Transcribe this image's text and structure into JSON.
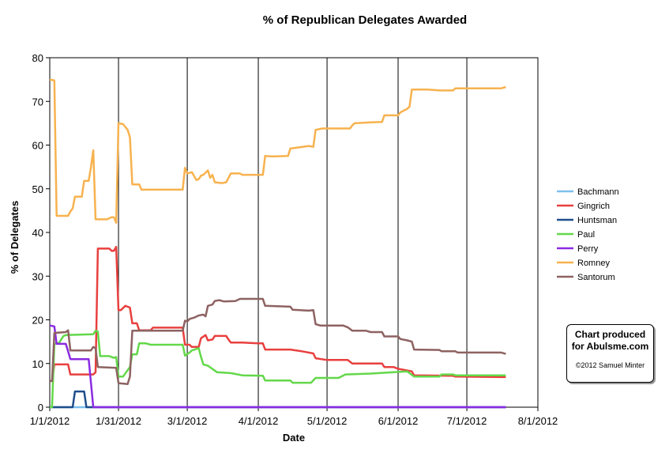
{
  "chart_data": {
    "type": "line",
    "title": "% of Republican Delegates Awarded",
    "xlabel": "Date",
    "ylabel": "% of Delegates",
    "ylim": [
      0,
      80
    ],
    "xlim": [
      "2012-01-01",
      "2012-08-01"
    ],
    "yticks": [
      "0",
      "10",
      "20",
      "30",
      "40",
      "50",
      "60",
      "70",
      "80"
    ],
    "xticks": [
      "1/1/2012",
      "1/31/2012",
      "3/1/2012",
      "4/1/2012",
      "5/1/2012",
      "6/1/2012",
      "7/1/2012",
      "8/1/2012"
    ],
    "grid": "vertical lines at each date tick",
    "legend_position": "right",
    "series": [
      {
        "name": "Bachmann",
        "color": "#7ec0ee",
        "points": [
          [
            "2012-01-01",
            0
          ],
          [
            "2012-07-18",
            0
          ]
        ]
      },
      {
        "name": "Gingrich",
        "color": "#e8403f",
        "points": [
          [
            "2012-01-01",
            6
          ],
          [
            "2012-01-02",
            6
          ],
          [
            "2012-01-03",
            9.8
          ],
          [
            "2012-01-09",
            9.8
          ],
          [
            "2012-01-10",
            7.5
          ],
          [
            "2012-01-20",
            7.5
          ],
          [
            "2012-01-21",
            8
          ],
          [
            "2012-01-22",
            36.3
          ],
          [
            "2012-01-27",
            36.3
          ],
          [
            "2012-01-28",
            35.8
          ],
          [
            "2012-01-29",
            35.8
          ],
          [
            "2012-01-30",
            36.7
          ],
          [
            "2012-01-31",
            22.2
          ],
          [
            "2012-02-01",
            22.2
          ],
          [
            "2012-02-03",
            23.2
          ],
          [
            "2012-02-05",
            22.8
          ],
          [
            "2012-02-06",
            19.2
          ],
          [
            "2012-02-08",
            19.2
          ],
          [
            "2012-02-09",
            17.6
          ],
          [
            "2012-02-14",
            17.6
          ],
          [
            "2012-02-15",
            18.2
          ],
          [
            "2012-02-21",
            18.2
          ],
          [
            "2012-02-28",
            18.2
          ],
          [
            "2012-02-29",
            14.3
          ],
          [
            "2012-03-02",
            14.3
          ],
          [
            "2012-03-03",
            13.8
          ],
          [
            "2012-03-06",
            13.8
          ],
          [
            "2012-03-07",
            15.8
          ],
          [
            "2012-03-09",
            16.5
          ],
          [
            "2012-03-10",
            15.3
          ],
          [
            "2012-03-12",
            15.5
          ],
          [
            "2012-03-13",
            16.3
          ],
          [
            "2012-03-18",
            16.3
          ],
          [
            "2012-03-19",
            15.5
          ],
          [
            "2012-03-20",
            14.8
          ],
          [
            "2012-03-25",
            14.8
          ],
          [
            "2012-04-01",
            14.6
          ],
          [
            "2012-04-03",
            14.6
          ],
          [
            "2012-04-04",
            13.2
          ],
          [
            "2012-04-15",
            13.2
          ],
          [
            "2012-04-20",
            12.8
          ],
          [
            "2012-04-25",
            12.3
          ],
          [
            "2012-04-26",
            11.2
          ],
          [
            "2012-05-01",
            10.8
          ],
          [
            "2012-05-10",
            10.8
          ],
          [
            "2012-05-12",
            10
          ],
          [
            "2012-05-25",
            10
          ],
          [
            "2012-05-26",
            9.2
          ],
          [
            "2012-05-30",
            9.2
          ],
          [
            "2012-06-01",
            8.8
          ],
          [
            "2012-06-07",
            8.2
          ],
          [
            "2012-06-08",
            7.3
          ],
          [
            "2012-06-25",
            7.2
          ],
          [
            "2012-06-26",
            7
          ],
          [
            "2012-07-18",
            6.9
          ]
        ]
      },
      {
        "name": "Huntsman",
        "color": "#1f4e8c",
        "points": [
          [
            "2012-01-01",
            0
          ],
          [
            "2012-01-11",
            0
          ],
          [
            "2012-01-12",
            3.6
          ],
          [
            "2012-01-16",
            3.6
          ],
          [
            "2012-01-17",
            0
          ],
          [
            "2012-07-18",
            0
          ]
        ]
      },
      {
        "name": "Paul",
        "color": "#63d84a",
        "points": [
          [
            "2012-01-01",
            0
          ],
          [
            "2012-01-02",
            0
          ],
          [
            "2012-01-03",
            14.5
          ],
          [
            "2012-01-05",
            14.7
          ],
          [
            "2012-01-07",
            16.3
          ],
          [
            "2012-01-08",
            16.5
          ],
          [
            "2012-01-20",
            16.7
          ],
          [
            "2012-01-21",
            17.5
          ],
          [
            "2012-01-22",
            17.3
          ],
          [
            "2012-01-23",
            11.7
          ],
          [
            "2012-01-27",
            11.7
          ],
          [
            "2012-01-29",
            11.3
          ],
          [
            "2012-01-30",
            11.5
          ],
          [
            "2012-01-31",
            7
          ],
          [
            "2012-02-02",
            7
          ],
          [
            "2012-02-05",
            9.2
          ],
          [
            "2012-02-06",
            12.1
          ],
          [
            "2012-02-08",
            12.1
          ],
          [
            "2012-02-09",
            14.6
          ],
          [
            "2012-02-12",
            14.6
          ],
          [
            "2012-02-14",
            14.3
          ],
          [
            "2012-02-28",
            14.3
          ],
          [
            "2012-02-29",
            11.8
          ],
          [
            "2012-03-02",
            12.5
          ],
          [
            "2012-03-03",
            13
          ],
          [
            "2012-03-06",
            13.5
          ],
          [
            "2012-03-07",
            11.5
          ],
          [
            "2012-03-08",
            9.8
          ],
          [
            "2012-03-10",
            9.5
          ],
          [
            "2012-03-14",
            8
          ],
          [
            "2012-03-20",
            7.8
          ],
          [
            "2012-03-25",
            7.3
          ],
          [
            "2012-04-03",
            7.2
          ],
          [
            "2012-04-04",
            6.1
          ],
          [
            "2012-04-15",
            6.1
          ],
          [
            "2012-04-16",
            5.6
          ],
          [
            "2012-04-24",
            5.6
          ],
          [
            "2012-04-26",
            6.7
          ],
          [
            "2012-05-06",
            6.7
          ],
          [
            "2012-05-09",
            7.5
          ],
          [
            "2012-05-20",
            7.7
          ],
          [
            "2012-05-30",
            8
          ],
          [
            "2012-06-05",
            8.2
          ],
          [
            "2012-06-08",
            7
          ],
          [
            "2012-06-19",
            7
          ],
          [
            "2012-06-20",
            7.5
          ],
          [
            "2012-06-25",
            7.5
          ],
          [
            "2012-06-26",
            7.3
          ],
          [
            "2012-07-18",
            7.3
          ]
        ]
      },
      {
        "name": "Perry",
        "color": "#8a2be2",
        "points": [
          [
            "2012-01-01",
            18.7
          ],
          [
            "2012-01-03",
            18.5
          ],
          [
            "2012-01-04",
            14.5
          ],
          [
            "2012-01-08",
            14.5
          ],
          [
            "2012-01-09",
            12.8
          ],
          [
            "2012-01-10",
            11
          ],
          [
            "2012-01-18",
            11
          ],
          [
            "2012-01-19",
            5.5
          ],
          [
            "2012-01-20",
            0
          ],
          [
            "2012-07-18",
            0
          ]
        ]
      },
      {
        "name": "Romney",
        "color": "#f7b24f",
        "points": [
          [
            "2012-01-01",
            75
          ],
          [
            "2012-01-03",
            74.8
          ],
          [
            "2012-01-04",
            43.8
          ],
          [
            "2012-01-09",
            43.8
          ],
          [
            "2012-01-10",
            44.8
          ],
          [
            "2012-01-11",
            45.5
          ],
          [
            "2012-01-12",
            48.2
          ],
          [
            "2012-01-15",
            48.2
          ],
          [
            "2012-01-16",
            51.8
          ],
          [
            "2012-01-18",
            51.8
          ],
          [
            "2012-01-19",
            55
          ],
          [
            "2012-01-20",
            58.8
          ],
          [
            "2012-01-21",
            43
          ],
          [
            "2012-01-26",
            43
          ],
          [
            "2012-01-28",
            43.5
          ],
          [
            "2012-01-29",
            43.5
          ],
          [
            "2012-01-30",
            42.2
          ],
          [
            "2012-01-31",
            65
          ],
          [
            "2012-02-02",
            64.8
          ],
          [
            "2012-02-04",
            63.5
          ],
          [
            "2012-02-05",
            61.8
          ],
          [
            "2012-02-06",
            51
          ],
          [
            "2012-02-09",
            51
          ],
          [
            "2012-02-10",
            49.8
          ],
          [
            "2012-02-28",
            49.8
          ],
          [
            "2012-02-29",
            54.8
          ],
          [
            "2012-03-01",
            53.5
          ],
          [
            "2012-03-03",
            53.8
          ],
          [
            "2012-03-05",
            52
          ],
          [
            "2012-03-06",
            52.2
          ],
          [
            "2012-03-07",
            53
          ],
          [
            "2012-03-08",
            53.2
          ],
          [
            "2012-03-10",
            54.2
          ],
          [
            "2012-03-11",
            52.5
          ],
          [
            "2012-03-12",
            53.2
          ],
          [
            "2012-03-13",
            51.5
          ],
          [
            "2012-03-16",
            51.3
          ],
          [
            "2012-03-18",
            51.5
          ],
          [
            "2012-03-19",
            52.5
          ],
          [
            "2012-03-20",
            53.5
          ],
          [
            "2012-03-24",
            53.5
          ],
          [
            "2012-03-25",
            53.2
          ],
          [
            "2012-04-03",
            53.2
          ],
          [
            "2012-04-04",
            57.5
          ],
          [
            "2012-04-07",
            57.4
          ],
          [
            "2012-04-14",
            57.5
          ],
          [
            "2012-04-15",
            59.2
          ],
          [
            "2012-04-19",
            59.5
          ],
          [
            "2012-04-23",
            59.8
          ],
          [
            "2012-04-25",
            59.6
          ],
          [
            "2012-04-26",
            63.5
          ],
          [
            "2012-04-29",
            63.8
          ],
          [
            "2012-05-11",
            63.8
          ],
          [
            "2012-05-12",
            64.5
          ],
          [
            "2012-05-13",
            65
          ],
          [
            "2012-05-20",
            65.2
          ],
          [
            "2012-05-25",
            65.3
          ],
          [
            "2012-05-26",
            66.8
          ],
          [
            "2012-06-01",
            66.8
          ],
          [
            "2012-06-02",
            67.5
          ],
          [
            "2012-06-05",
            68.3
          ],
          [
            "2012-06-06",
            68.8
          ],
          [
            "2012-06-07",
            72.7
          ],
          [
            "2012-06-14",
            72.7
          ],
          [
            "2012-06-19",
            72.5
          ],
          [
            "2012-06-25",
            72.5
          ],
          [
            "2012-06-26",
            73
          ],
          [
            "2012-07-16",
            73
          ],
          [
            "2012-07-18",
            73.3
          ]
        ]
      },
      {
        "name": "Santorum",
        "color": "#8e6262",
        "points": [
          [
            "2012-01-01",
            6
          ],
          [
            "2012-01-02",
            6
          ],
          [
            "2012-01-03",
            17
          ],
          [
            "2012-01-08",
            17.2
          ],
          [
            "2012-01-09",
            17.6
          ],
          [
            "2012-01-10",
            13
          ],
          [
            "2012-01-19",
            13
          ],
          [
            "2012-01-20",
            13.8
          ],
          [
            "2012-01-21",
            13.5
          ],
          [
            "2012-01-22",
            9.2
          ],
          [
            "2012-01-30",
            9
          ],
          [
            "2012-01-31",
            5.5
          ],
          [
            "2012-02-04",
            5.3
          ],
          [
            "2012-02-05",
            7
          ],
          [
            "2012-02-06",
            17.5
          ],
          [
            "2012-02-28",
            17.5
          ],
          [
            "2012-02-29",
            19.8
          ],
          [
            "2012-03-01",
            19.6
          ],
          [
            "2012-03-02",
            20.2
          ],
          [
            "2012-03-04",
            20.5
          ],
          [
            "2012-03-06",
            21
          ],
          [
            "2012-03-08",
            21.2
          ],
          [
            "2012-03-09",
            20.8
          ],
          [
            "2012-03-10",
            23.2
          ],
          [
            "2012-03-12",
            23.5
          ],
          [
            "2012-03-13",
            24.3
          ],
          [
            "2012-03-15",
            24.5
          ],
          [
            "2012-03-17",
            24.2
          ],
          [
            "2012-03-22",
            24.3
          ],
          [
            "2012-03-24",
            24.8
          ],
          [
            "2012-04-03",
            24.8
          ],
          [
            "2012-04-04",
            23.2
          ],
          [
            "2012-04-15",
            23
          ],
          [
            "2012-04-16",
            22.3
          ],
          [
            "2012-04-23",
            22.1
          ],
          [
            "2012-04-25",
            22.2
          ],
          [
            "2012-04-26",
            19
          ],
          [
            "2012-04-28",
            18.7
          ],
          [
            "2012-05-08",
            18.7
          ],
          [
            "2012-05-10",
            18.3
          ],
          [
            "2012-05-12",
            17.5
          ],
          [
            "2012-05-18",
            17.5
          ],
          [
            "2012-05-20",
            17.2
          ],
          [
            "2012-05-25",
            17.2
          ],
          [
            "2012-05-26",
            16.2
          ],
          [
            "2012-06-01",
            16.2
          ],
          [
            "2012-06-02",
            15.6
          ],
          [
            "2012-06-05",
            15.3
          ],
          [
            "2012-06-07",
            15
          ],
          [
            "2012-06-08",
            13.2
          ],
          [
            "2012-06-19",
            13.1
          ],
          [
            "2012-06-20",
            12.8
          ],
          [
            "2012-06-26",
            12.8
          ],
          [
            "2012-06-27",
            12.5
          ],
          [
            "2012-07-16",
            12.5
          ],
          [
            "2012-07-18",
            12.2
          ]
        ]
      }
    ]
  },
  "credit": {
    "line1": "Chart produced",
    "line2": "for Abulsme.com",
    "copyright": "©2012 Samuel Minter"
  }
}
